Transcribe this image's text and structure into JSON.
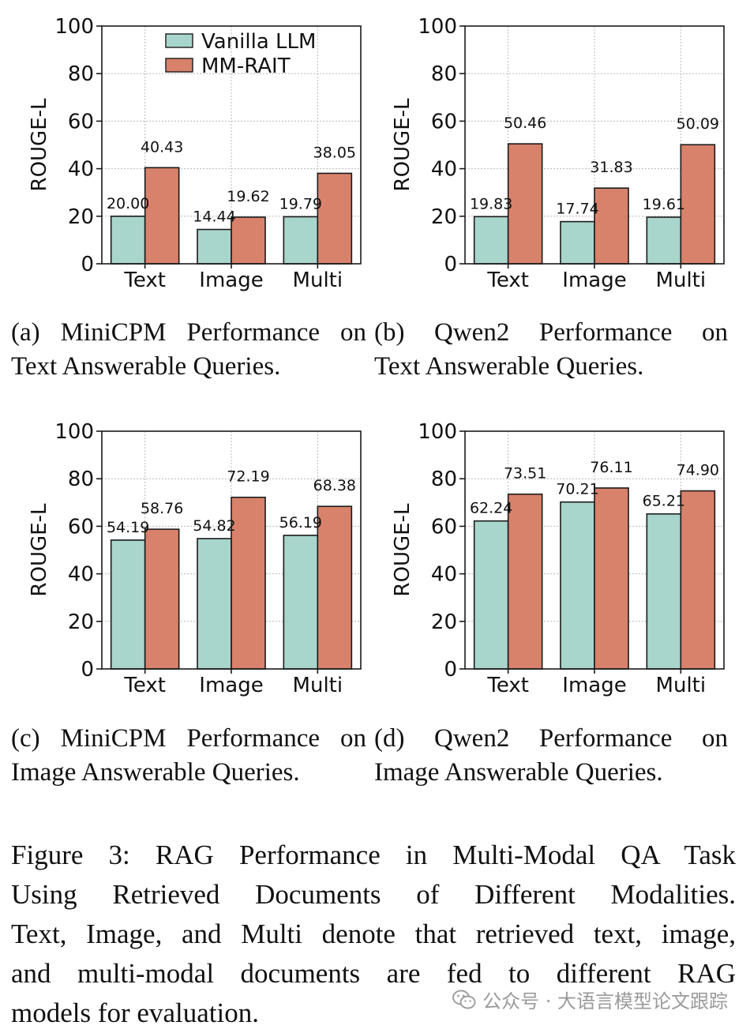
{
  "colors": {
    "vanilla": "#a8d5cc",
    "mmrait": "#d9826b",
    "edge": "#1a1a1a",
    "grid": "#b8b8b8",
    "watermark": "#9a9a9a"
  },
  "chart_data": [
    {
      "type": "bar",
      "panel": "a",
      "title": "",
      "xlabel": "",
      "ylabel": "ROUGE-L",
      "ylim": [
        0,
        100
      ],
      "yticks": [
        0,
        20,
        40,
        60,
        80,
        100
      ],
      "grid": true,
      "legend": "top-center",
      "categories": [
        "Text",
        "Image",
        "Multi"
      ],
      "series": [
        {
          "name": "Vanilla LLM",
          "values": [
            20.0,
            14.44,
            19.79
          ],
          "labels": [
            "20.00",
            "14.44",
            "19.79"
          ]
        },
        {
          "name": "MM-RAIT",
          "values": [
            40.43,
            19.62,
            38.05
          ],
          "labels": [
            "40.43",
            "19.62",
            "38.05"
          ]
        }
      ]
    },
    {
      "type": "bar",
      "panel": "b",
      "title": "",
      "xlabel": "",
      "ylabel": "ROUGE-L",
      "ylim": [
        0,
        100
      ],
      "yticks": [
        0,
        20,
        40,
        60,
        80,
        100
      ],
      "grid": true,
      "categories": [
        "Text",
        "Image",
        "Multi"
      ],
      "series": [
        {
          "name": "Vanilla LLM",
          "values": [
            19.83,
            17.74,
            19.61
          ],
          "labels": [
            "19.83",
            "17.74",
            "19.61"
          ]
        },
        {
          "name": "MM-RAIT",
          "values": [
            50.46,
            31.83,
            50.09
          ],
          "labels": [
            "50.46",
            "31.83",
            "50.09"
          ]
        }
      ]
    },
    {
      "type": "bar",
      "panel": "c",
      "title": "",
      "xlabel": "",
      "ylabel": "ROUGE-L",
      "ylim": [
        0,
        100
      ],
      "yticks": [
        0,
        20,
        40,
        60,
        80,
        100
      ],
      "grid": true,
      "categories": [
        "Text",
        "Image",
        "Multi"
      ],
      "series": [
        {
          "name": "Vanilla LLM",
          "values": [
            54.19,
            54.82,
            56.19
          ],
          "labels": [
            "54.19",
            "54.82",
            "56.19"
          ]
        },
        {
          "name": "MM-RAIT",
          "values": [
            58.76,
            72.19,
            68.38
          ],
          "labels": [
            "58.76",
            "72.19",
            "68.38"
          ]
        }
      ]
    },
    {
      "type": "bar",
      "panel": "d",
      "title": "",
      "xlabel": "",
      "ylabel": "ROUGE-L",
      "ylim": [
        0,
        100
      ],
      "yticks": [
        0,
        20,
        40,
        60,
        80,
        100
      ],
      "grid": true,
      "categories": [
        "Text",
        "Image",
        "Multi"
      ],
      "series": [
        {
          "name": "Vanilla LLM",
          "values": [
            62.24,
            70.21,
            65.21
          ],
          "labels": [
            "62.24",
            "70.21",
            "65.21"
          ]
        },
        {
          "name": "MM-RAIT",
          "values": [
            73.51,
            76.11,
            74.9
          ],
          "labels": [
            "73.51",
            "76.11",
            "74.90"
          ]
        }
      ]
    }
  ],
  "captions": {
    "a": [
      "(a) MiniCPM Performance on",
      "Text Answerable Queries."
    ],
    "b": [
      "(b) Qwen2 Performance on",
      "Text Answerable Queries."
    ],
    "c": [
      "(c) MiniCPM Performance on",
      "Image Answerable Queries."
    ],
    "d": [
      "(d) Qwen2 Performance on",
      "Image Answerable Queries."
    ]
  },
  "figure_caption": [
    "Figure 3: RAG Performance in Multi-Modal QA Task",
    "Using Retrieved Documents of Different Modalities.",
    "Text, Image, and Multi denote that retrieved text, image,",
    "and multi-modal documents are fed to different RAG",
    "models for evaluation."
  ],
  "watermark": {
    "icon": "wechat-icon",
    "text": "公众号 · 大语言模型论文跟踪"
  }
}
